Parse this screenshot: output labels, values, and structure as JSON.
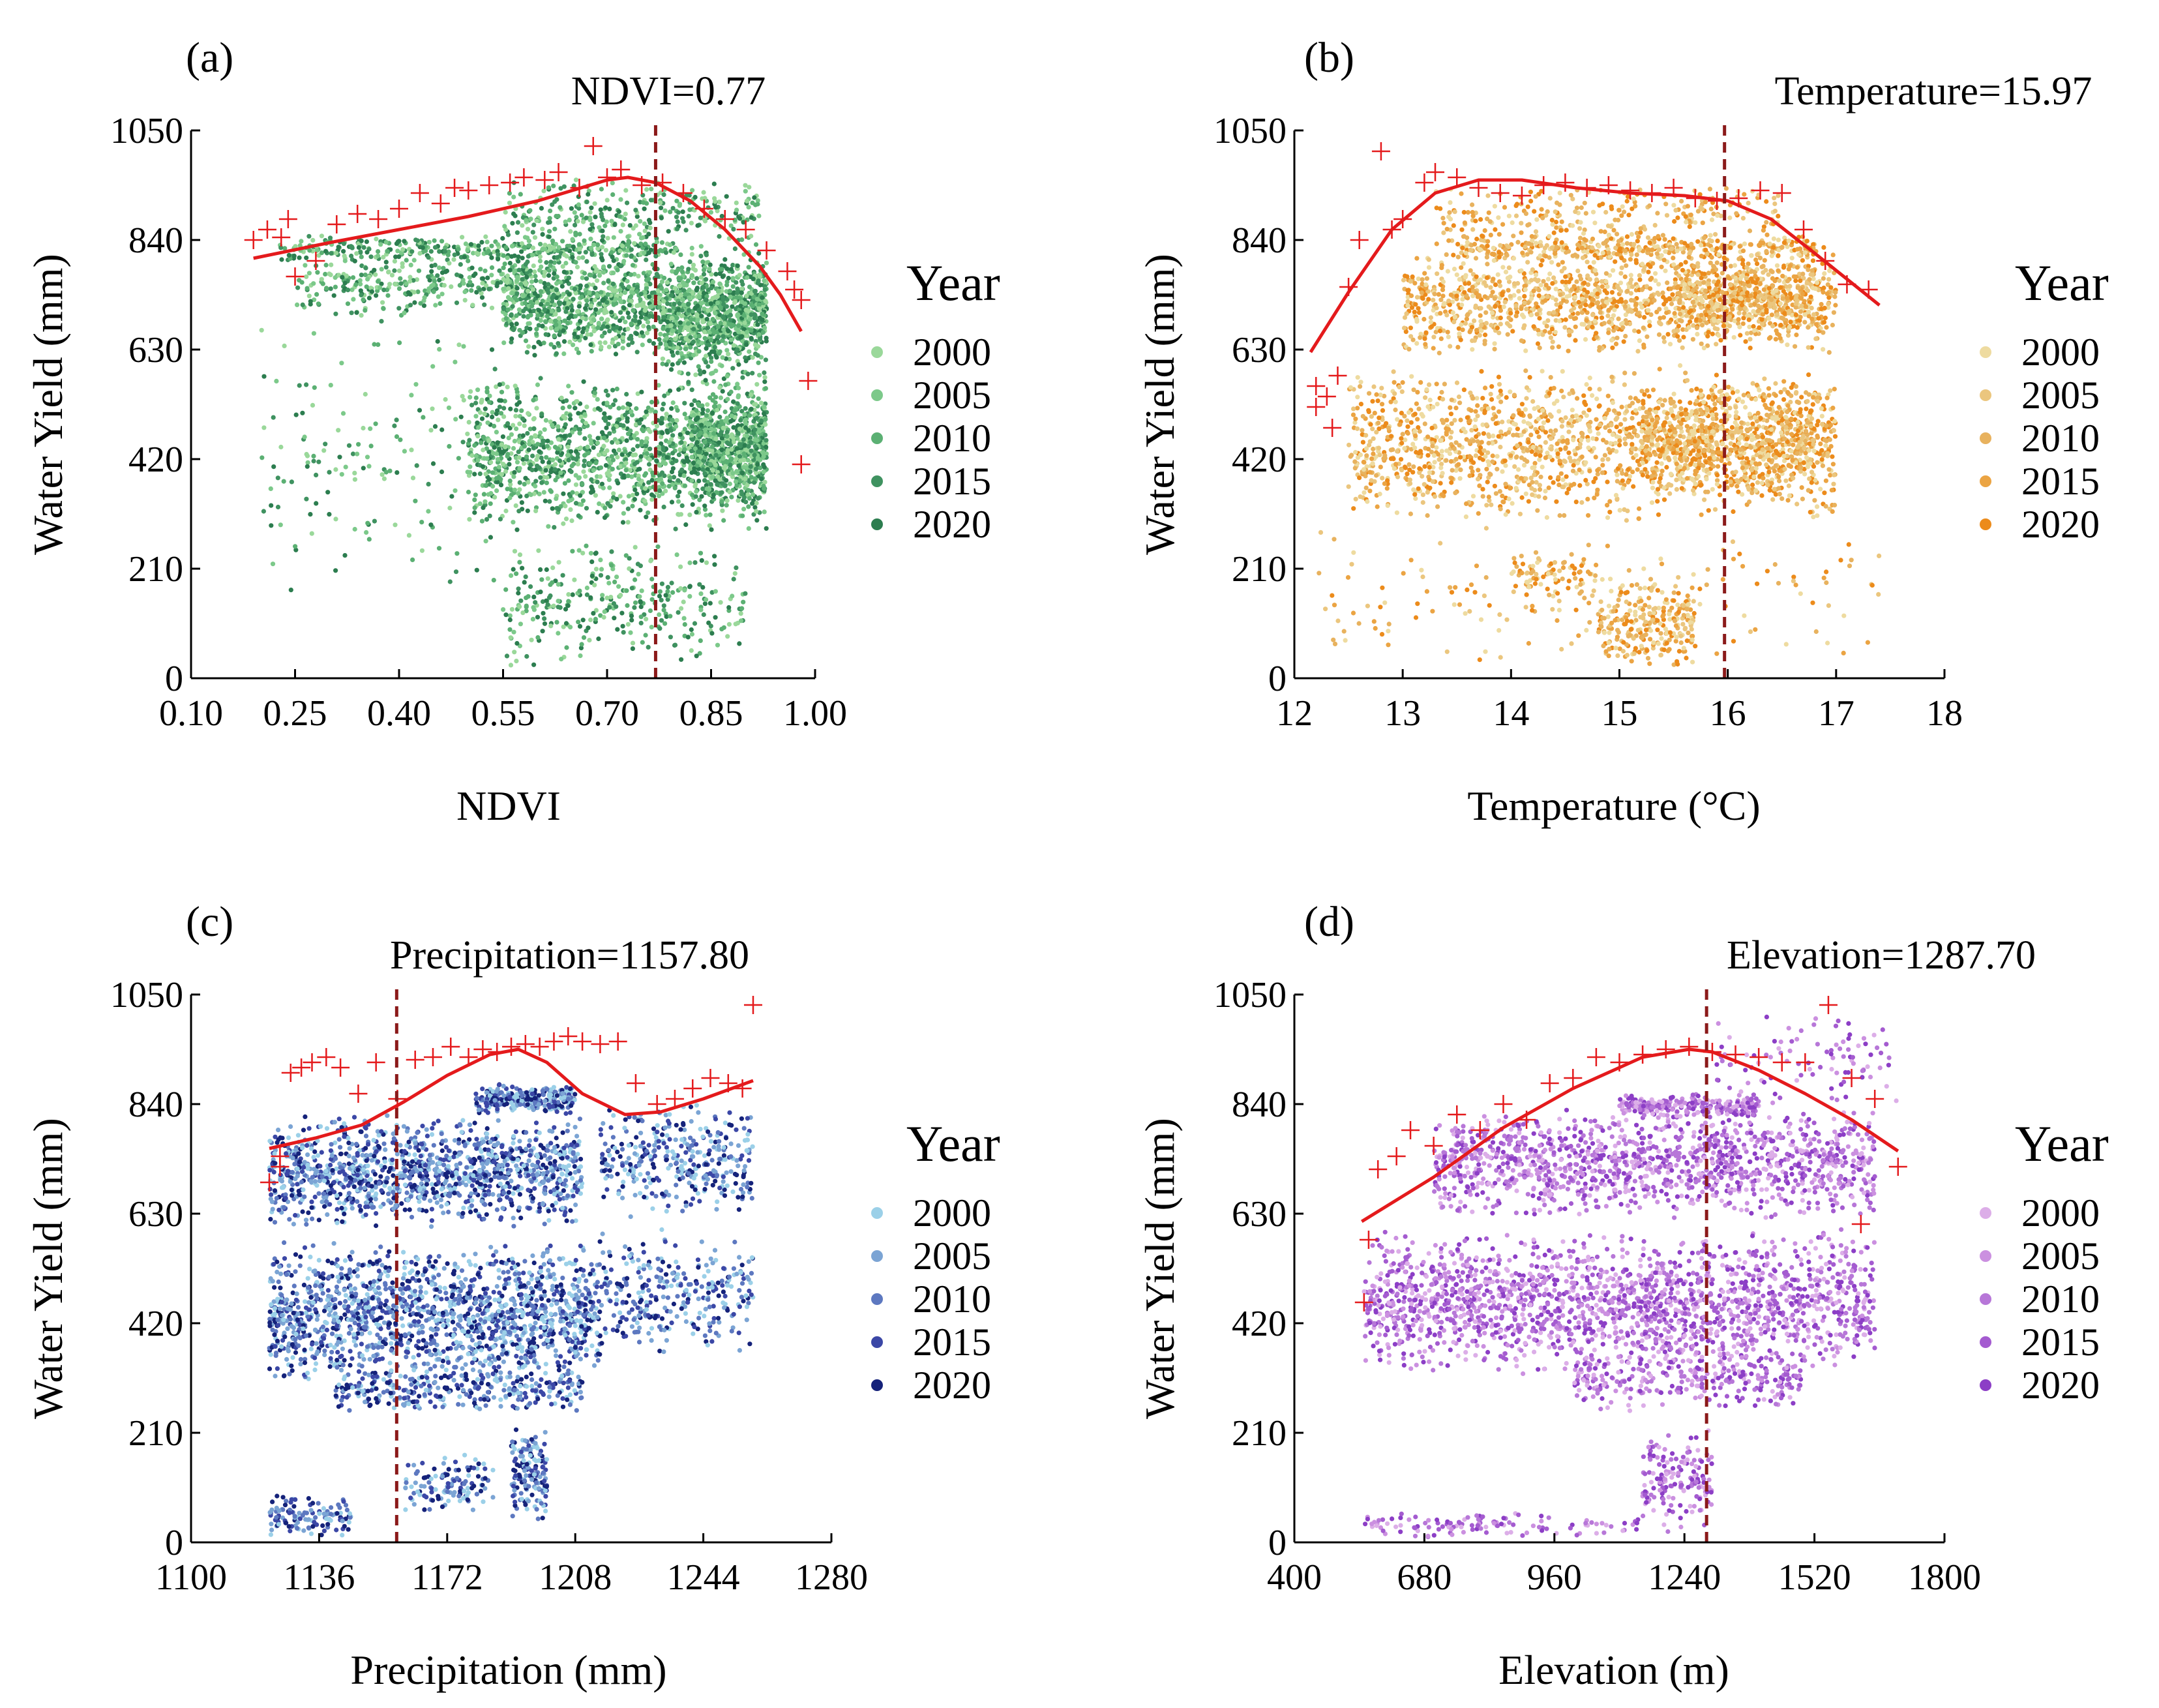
{
  "chart_data": [
    {
      "id": "a",
      "type": "scatter",
      "panel_label": "(a)",
      "threshold_label": "NDVI=0.77",
      "threshold": 0.77,
      "xlabel": "NDVI",
      "ylabel": "Water Yield (mm)",
      "xlim": [
        0.1,
        1.0
      ],
      "ylim": [
        0,
        1050
      ],
      "xticks": [
        0.1,
        0.25,
        0.4,
        0.55,
        0.7,
        0.85,
        1.0
      ],
      "xtick_labels": [
        "0.10",
        "0.25",
        "0.40",
        "0.55",
        "0.70",
        "0.85",
        "1.00"
      ],
      "yticks": [
        0,
        210,
        420,
        630,
        840,
        1050
      ],
      "ytick_labels": [
        "0",
        "210",
        "420",
        "630",
        "840",
        "1050"
      ],
      "legend_title": "Year",
      "series": [
        {
          "name": "2000",
          "color": "#9ad89a"
        },
        {
          "name": "2005",
          "color": "#7cc98a"
        },
        {
          "name": "2010",
          "color": "#5bb073"
        },
        {
          "name": "2015",
          "color": "#3f9260"
        },
        {
          "name": "2020",
          "color": "#2c7d4f"
        }
      ],
      "fit_curve": {
        "color": "#e41a1c",
        "x": [
          0.19,
          0.3,
          0.4,
          0.5,
          0.6,
          0.65,
          0.7,
          0.73,
          0.77,
          0.82,
          0.87,
          0.92,
          0.95,
          0.98
        ],
        "y": [
          805,
          835,
          860,
          885,
          915,
          935,
          955,
          960,
          950,
          915,
          860,
          790,
          735,
          665
        ]
      },
      "crosses": {
        "color": "#e41a1c",
        "x": [
          0.19,
          0.21,
          0.23,
          0.24,
          0.25,
          0.28,
          0.31,
          0.34,
          0.37,
          0.4,
          0.43,
          0.46,
          0.48,
          0.5,
          0.53,
          0.56,
          0.58,
          0.61,
          0.63,
          0.66,
          0.68,
          0.7,
          0.72,
          0.75,
          0.78,
          0.81,
          0.84,
          0.87,
          0.9,
          0.93,
          0.96,
          0.97,
          0.98,
          0.99,
          0.98
        ],
        "y": [
          840,
          860,
          845,
          880,
          770,
          800,
          870,
          890,
          880,
          900,
          930,
          910,
          940,
          935,
          945,
          950,
          960,
          955,
          970,
          940,
          1020,
          960,
          975,
          945,
          950,
          930,
          900,
          880,
          860,
          820,
          780,
          745,
          725,
          570,
          410
        ]
      },
      "clusters": [
        {
          "xr": [
            0.55,
            0.93
          ],
          "yr": [
            610,
            830
          ],
          "n": 1300
        },
        {
          "xr": [
            0.5,
            0.93
          ],
          "yr": [
            280,
            580
          ],
          "n": 1400
        },
        {
          "xr": [
            0.78,
            0.93
          ],
          "yr": [
            550,
            800
          ],
          "n": 500
        },
        {
          "xr": [
            0.82,
            0.93
          ],
          "yr": [
            330,
            560
          ],
          "n": 500
        },
        {
          "xr": [
            0.22,
            0.8
          ],
          "yr": [
            800,
            850
          ],
          "n": 350
        },
        {
          "xr": [
            0.25,
            0.6
          ],
          "yr": [
            690,
            820
          ],
          "n": 300
        },
        {
          "xr": [
            0.55,
            0.92
          ],
          "yr": [
            820,
            960
          ],
          "n": 280
        },
        {
          "xr": [
            0.2,
            0.55
          ],
          "yr": [
            150,
            700
          ],
          "n": 160
        },
        {
          "xr": [
            0.55,
            0.9
          ],
          "yr": [
            10,
            260
          ],
          "n": 320
        }
      ]
    },
    {
      "id": "b",
      "type": "scatter",
      "panel_label": "(b)",
      "threshold_label": "Temperature=15.97",
      "threshold": 15.97,
      "xlabel": "Temperature (°C)",
      "ylabel": "Water Yield (mm)",
      "xlim": [
        12,
        18
      ],
      "ylim": [
        0,
        1050
      ],
      "xticks": [
        12,
        13,
        14,
        15,
        16,
        17,
        18
      ],
      "xtick_labels": [
        "12",
        "13",
        "14",
        "15",
        "16",
        "17",
        "18"
      ],
      "yticks": [
        0,
        210,
        420,
        630,
        840,
        1050
      ],
      "ytick_labels": [
        "0",
        "210",
        "420",
        "630",
        "840",
        "1050"
      ],
      "legend_title": "Year",
      "series": [
        {
          "name": "2000",
          "color": "#eedba0"
        },
        {
          "name": "2005",
          "color": "#ebc67e"
        },
        {
          "name": "2010",
          "color": "#e8b25e"
        },
        {
          "name": "2015",
          "color": "#eba443"
        },
        {
          "name": "2020",
          "color": "#ec8b1b"
        }
      ],
      "fit_curve": {
        "color": "#e41a1c",
        "x": [
          12.15,
          12.5,
          12.9,
          13.3,
          13.7,
          14.1,
          14.6,
          15.1,
          15.6,
          16.0,
          16.4,
          16.8,
          17.1,
          17.4
        ],
        "y": [
          625,
          740,
          860,
          930,
          955,
          955,
          940,
          930,
          925,
          915,
          880,
          815,
          765,
          715
        ]
      },
      "crosses": {
        "color": "#e41a1c",
        "x": [
          12.2,
          12.3,
          12.4,
          12.5,
          12.6,
          12.8,
          12.9,
          13.0,
          13.2,
          13.3,
          13.5,
          13.7,
          13.9,
          14.1,
          14.3,
          14.5,
          14.7,
          14.9,
          15.1,
          15.3,
          15.5,
          15.7,
          15.9,
          16.1,
          16.3,
          16.5,
          16.7,
          16.9,
          17.1,
          17.3,
          12.2,
          12.35
        ],
        "y": [
          560,
          540,
          580,
          750,
          840,
          1010,
          860,
          880,
          950,
          970,
          960,
          940,
          930,
          925,
          945,
          950,
          940,
          945,
          935,
          930,
          940,
          920,
          915,
          920,
          935,
          930,
          860,
          800,
          755,
          745,
          520,
          480
        ]
      },
      "clusters": [
        {
          "xr": [
            12.5,
            17.0
          ],
          "yr": [
            300,
            600
          ],
          "n": 1600
        },
        {
          "xr": [
            13.0,
            17.0
          ],
          "yr": [
            620,
            830
          ],
          "n": 1300
        },
        {
          "xr": [
            13.5,
            16.8
          ],
          "yr": [
            800,
            850
          ],
          "n": 350
        },
        {
          "xr": [
            15.2,
            16.8
          ],
          "yr": [
            350,
            560
          ],
          "n": 600
        },
        {
          "xr": [
            15.5,
            16.8
          ],
          "yr": [
            650,
            800
          ],
          "n": 400
        },
        {
          "xr": [
            13.3,
            16.5
          ],
          "yr": [
            830,
            950
          ],
          "n": 250
        },
        {
          "xr": [
            14.8,
            15.7
          ],
          "yr": [
            20,
            200
          ],
          "n": 260
        },
        {
          "xr": [
            14.0,
            14.8
          ],
          "yr": [
            150,
            250
          ],
          "n": 80
        },
        {
          "xr": [
            12.2,
            17.4
          ],
          "yr": [
            10,
            300
          ],
          "n": 150
        }
      ]
    },
    {
      "id": "c",
      "type": "scatter",
      "panel_label": "(c)",
      "threshold_label": "Precipitation=1157.80",
      "threshold": 1157.8,
      "xlabel": "Precipitation (mm)",
      "ylabel": "Water Yield (mm)",
      "xlim": [
        1100,
        1280
      ],
      "ylim": [
        0,
        1050
      ],
      "xticks": [
        1100,
        1136,
        1172,
        1208,
        1244,
        1280
      ],
      "xtick_labels": [
        "1100",
        "1136",
        "1172",
        "1208",
        "1244",
        "1280"
      ],
      "yticks": [
        0,
        210,
        420,
        630,
        840,
        1050
      ],
      "ytick_labels": [
        "0",
        "210",
        "420",
        "630",
        "840",
        "1050"
      ],
      "legend_title": "Year",
      "series": [
        {
          "name": "2000",
          "color": "#9bd0e8"
        },
        {
          "name": "2005",
          "color": "#7ba4d4"
        },
        {
          "name": "2010",
          "color": "#5d78c0"
        },
        {
          "name": "2015",
          "color": "#3b47a6"
        },
        {
          "name": "2020",
          "color": "#15227a"
        }
      ],
      "fit_curve": {
        "color": "#e41a1c",
        "x": [
          1122,
          1135,
          1148,
          1160,
          1172,
          1184,
          1192,
          1200,
          1210,
          1222,
          1232,
          1244,
          1258
        ],
        "y": [
          755,
          775,
          800,
          845,
          895,
          935,
          945,
          920,
          860,
          820,
          825,
          850,
          885
        ]
      },
      "crosses": {
        "color": "#e41a1c",
        "x": [
          1122,
          1125,
          1128,
          1131,
          1134,
          1138,
          1142,
          1147,
          1152,
          1158,
          1163,
          1168,
          1173,
          1178,
          1182,
          1186,
          1190,
          1194,
          1198,
          1202,
          1206,
          1210,
          1215,
          1220,
          1225,
          1231,
          1236,
          1241,
          1246,
          1251,
          1255,
          1258,
          1125
        ],
        "y": [
          690,
          740,
          900,
          910,
          920,
          930,
          910,
          860,
          920,
          850,
          925,
          930,
          950,
          930,
          945,
          940,
          950,
          955,
          950,
          960,
          970,
          960,
          955,
          960,
          880,
          840,
          850,
          870,
          890,
          880,
          870,
          1030,
          720
        ]
      },
      "clusters": [
        {
          "xr": [
            1122,
            1210
          ],
          "yr": [
            600,
            820
          ],
          "n": 1300
        },
        {
          "xr": [
            1122,
            1215
          ],
          "yr": [
            300,
            580
          ],
          "n": 1600
        },
        {
          "xr": [
            1140,
            1210
          ],
          "yr": [
            250,
            330
          ],
          "n": 300
        },
        {
          "xr": [
            1215,
            1258
          ],
          "yr": [
            350,
            600
          ],
          "n": 300
        },
        {
          "xr": [
            1215,
            1258
          ],
          "yr": [
            620,
            850
          ],
          "n": 350
        },
        {
          "xr": [
            1180,
            1208
          ],
          "yr": [
            820,
            880
          ],
          "n": 260
        },
        {
          "xr": [
            1190,
            1200
          ],
          "yr": [
            40,
            220
          ],
          "n": 150
        },
        {
          "xr": [
            1160,
            1185
          ],
          "yr": [
            50,
            170
          ],
          "n": 120
        },
        {
          "xr": [
            1122,
            1145
          ],
          "yr": [
            10,
            90
          ],
          "n": 120
        }
      ]
    },
    {
      "id": "d",
      "type": "scatter",
      "panel_label": "(d)",
      "threshold_label": "Elevation=1287.70",
      "threshold": 1287.7,
      "xlabel": "Elevation (m)",
      "ylabel": "Water Yield (mm)",
      "xlim": [
        400,
        1800
      ],
      "ylim": [
        0,
        1050
      ],
      "xticks": [
        400,
        680,
        960,
        1240,
        1520,
        1800
      ],
      "xtick_labels": [
        "400",
        "680",
        "960",
        "1240",
        "1520",
        "1800"
      ],
      "yticks": [
        0,
        210,
        420,
        630,
        840,
        1050
      ],
      "ytick_labels": [
        "0",
        "210",
        "420",
        "630",
        "840",
        "1050"
      ],
      "legend_title": "Year",
      "series": [
        {
          "name": "2000",
          "color": "#dcaee8"
        },
        {
          "name": "2005",
          "color": "#cb90e0"
        },
        {
          "name": "2010",
          "color": "#b777d8"
        },
        {
          "name": "2015",
          "color": "#a45bd0"
        },
        {
          "name": "2020",
          "color": "#8c3ec6"
        }
      ],
      "fit_curve": {
        "color": "#e41a1c",
        "x": [
          545,
          700,
          850,
          1000,
          1150,
          1250,
          1300,
          1400,
          1500,
          1600,
          1700
        ],
        "y": [
          615,
          700,
          795,
          870,
          930,
          945,
          940,
          905,
          860,
          810,
          750
        ]
      },
      "crosses": {
        "color": "#e41a1c",
        "x": [
          550,
          580,
          620,
          650,
          700,
          750,
          800,
          850,
          900,
          950,
          1000,
          1050,
          1100,
          1150,
          1200,
          1250,
          1300,
          1350,
          1400,
          1450,
          1500,
          1550,
          1600,
          1650,
          1700,
          560,
          1620
        ],
        "y": [
          460,
          715,
          740,
          790,
          760,
          820,
          790,
          840,
          810,
          880,
          890,
          930,
          920,
          935,
          945,
          950,
          940,
          935,
          930,
          920,
          920,
          1030,
          890,
          850,
          720,
          580,
          610
        ]
      },
      "clusters": [
        {
          "xr": [
            550,
            1650
          ],
          "yr": [
            320,
            600
          ],
          "n": 1900
        },
        {
          "xr": [
            700,
            1650
          ],
          "yr": [
            620,
            830
          ],
          "n": 1300
        },
        {
          "xr": [
            1000,
            1500
          ],
          "yr": [
            250,
            380
          ],
          "n": 300
        },
        {
          "xr": [
            1100,
            1400
          ],
          "yr": [
            810,
            860
          ],
          "n": 250
        },
        {
          "xr": [
            1150,
            1300
          ],
          "yr": [
            20,
            220
          ],
          "n": 160
        },
        {
          "xr": [
            550,
            1150
          ],
          "yr": [
            5,
            60
          ],
          "n": 120
        },
        {
          "xr": [
            1300,
            1700
          ],
          "yr": [
            830,
            1020
          ],
          "n": 100
        }
      ]
    }
  ]
}
